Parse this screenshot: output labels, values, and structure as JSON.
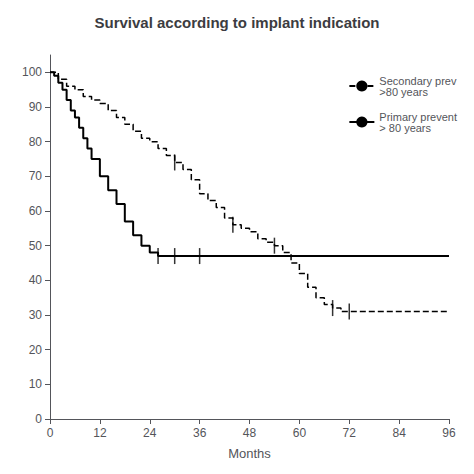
{
  "chart_data": {
    "type": "line",
    "title": "Survival according to implant indication",
    "xlabel": "Months",
    "xlim": [
      0,
      96
    ],
    "ylim": [
      0,
      105
    ],
    "xticks": [
      0,
      12,
      24,
      36,
      48,
      60,
      72,
      84,
      96
    ],
    "yticks": [
      0,
      10,
      20,
      30,
      40,
      50,
      60,
      70,
      80,
      90,
      100
    ],
    "grid": false,
    "legend": "upper right",
    "series": [
      {
        "name": "Secondary prev\n>80 years",
        "color": "#000000",
        "line_style": "dashed",
        "x": [
          0,
          2,
          4,
          6,
          8,
          10,
          12,
          14,
          16,
          18,
          20,
          22,
          24,
          26,
          28,
          30,
          32,
          34,
          36,
          38,
          40,
          42,
          44,
          46,
          48,
          50,
          52,
          54,
          56,
          58,
          60,
          62,
          64,
          66,
          68,
          70,
          72,
          96
        ],
        "values": [
          100,
          98,
          96,
          95,
          93,
          92,
          91,
          89,
          87,
          85,
          83,
          81,
          80,
          78,
          76,
          74,
          72,
          69,
          65,
          63,
          61,
          58,
          56,
          55,
          54,
          52,
          51,
          50,
          48,
          45,
          42,
          38,
          35,
          33,
          32,
          31,
          31,
          31
        ],
        "censor_x": [
          30,
          44,
          54,
          68,
          72
        ],
        "censor_y": [
          74,
          56,
          50,
          32,
          31
        ]
      },
      {
        "name": "Primary prevent\n> 80 years",
        "color": "#000000",
        "line_style": "solid",
        "x": [
          0,
          1,
          2,
          3,
          4,
          5,
          6,
          7,
          8,
          9,
          10,
          12,
          14,
          16,
          18,
          20,
          22,
          24,
          26,
          28,
          30,
          32,
          34,
          36,
          96
        ],
        "values": [
          100,
          99,
          97,
          95,
          92,
          89,
          87,
          84,
          81,
          78,
          75,
          70,
          66,
          62,
          57,
          53,
          50,
          48,
          47,
          47,
          47,
          47,
          47,
          47,
          47
        ],
        "censor_x": [
          26,
          30,
          36
        ],
        "censor_y": [
          47,
          47,
          47
        ]
      }
    ]
  }
}
